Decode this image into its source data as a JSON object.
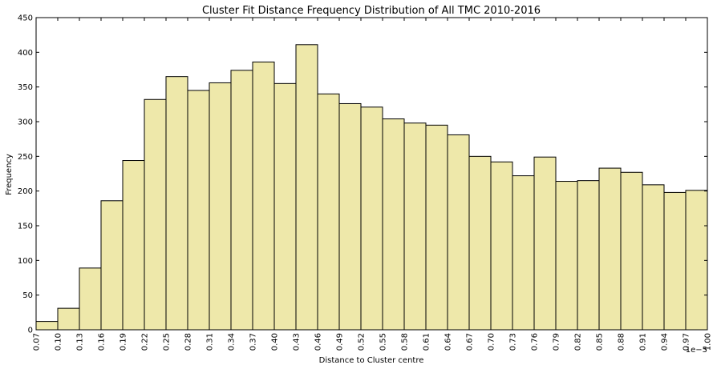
{
  "chart_data": {
    "type": "bar",
    "title": "Cluster Fit Distance Frequency Distribution of All TMC 2010-2016",
    "xlabel": "Distance to Cluster centre",
    "ylabel": "Frequency",
    "x_offset_label": "1e−5",
    "xlim": [
      0.07,
      1.0
    ],
    "ylim": [
      0,
      450
    ],
    "yticks": [
      0,
      50,
      100,
      150,
      200,
      250,
      300,
      350,
      400,
      450
    ],
    "xtick_labels": [
      "0.07",
      "0.10",
      "0.13",
      "0.16",
      "0.19",
      "0.22",
      "0.25",
      "0.28",
      "0.31",
      "0.34",
      "0.37",
      "0.40",
      "0.43",
      "0.46",
      "0.49",
      "0.52",
      "0.55",
      "0.58",
      "0.61",
      "0.64",
      "0.67",
      "0.70",
      "0.73",
      "0.76",
      "0.79",
      "0.82",
      "0.85",
      "0.88",
      "0.91",
      "0.94",
      "0.97",
      "1.00"
    ],
    "values": [
      12,
      31,
      89,
      186,
      244,
      332,
      365,
      345,
      356,
      374,
      386,
      355,
      411,
      340,
      326,
      321,
      304,
      298,
      295,
      281,
      250,
      242,
      222,
      249,
      214,
      215,
      233,
      227,
      209,
      198,
      201
    ],
    "bar_color": "#eee8aa",
    "edge_color": "#000000",
    "grid": false
  }
}
